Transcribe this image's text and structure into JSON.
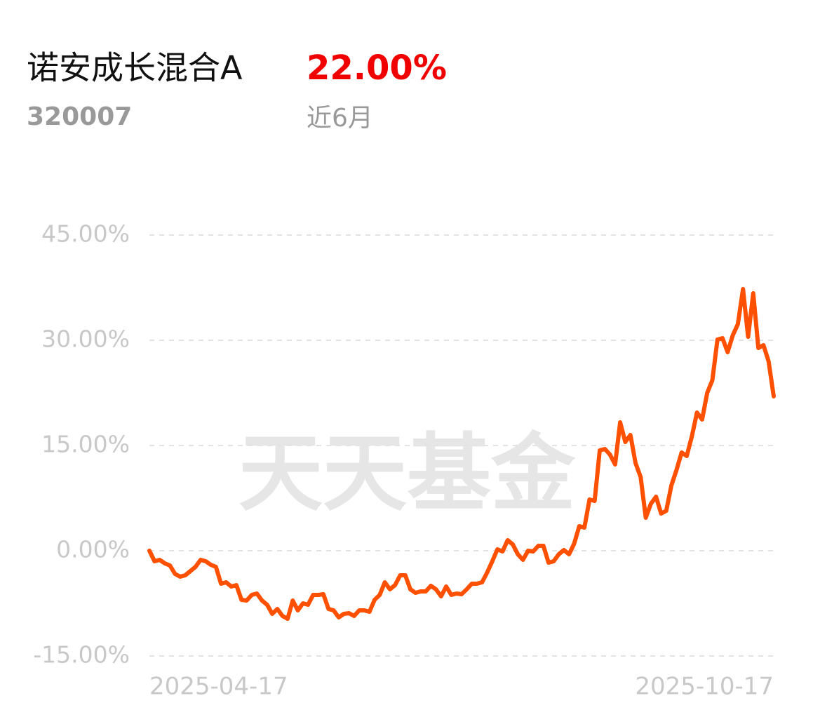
{
  "chart_data": {
    "type": "line",
    "title": "诺安成长混合A",
    "subtitle": "320007",
    "period_return": "22.00%",
    "period": "近6月",
    "watermark": "天天基金",
    "color": "#ff5000",
    "return_color": "#f00000",
    "grid": true,
    "ylim": [
      -15,
      45
    ],
    "yticks": [
      {
        "value": -15,
        "label": "-15.00%"
      },
      {
        "value": 0,
        "label": "0.00%"
      },
      {
        "value": 15,
        "label": "15.00%"
      },
      {
        "value": 30,
        "label": "30.00%"
      },
      {
        "value": 45,
        "label": "45.00%"
      }
    ],
    "categories": [
      "2025-04-17",
      null,
      null,
      null,
      null,
      null,
      null,
      null,
      null,
      null,
      null,
      null,
      null,
      null,
      null,
      null,
      null,
      null,
      null,
      null,
      null,
      null,
      null,
      null,
      null,
      null,
      null,
      null,
      null,
      null,
      null,
      null,
      null,
      null,
      null,
      null,
      null,
      null,
      null,
      null,
      null,
      null,
      null,
      null,
      null,
      null,
      null,
      null,
      null,
      null,
      null,
      null,
      null,
      null,
      null,
      null,
      null,
      null,
      null,
      null,
      null,
      null,
      null,
      null,
      null,
      null,
      null,
      null,
      null,
      null,
      null,
      null,
      null,
      null,
      null,
      null,
      null,
      null,
      null,
      null,
      null,
      null,
      null,
      null,
      null,
      null,
      null,
      null,
      null,
      null,
      null,
      null,
      null,
      null,
      null,
      null,
      null,
      null,
      null,
      null,
      null,
      null,
      null,
      null,
      null,
      null,
      null,
      null,
      null,
      null,
      null,
      null,
      null,
      null,
      null,
      null,
      null,
      null,
      null,
      null,
      null,
      null,
      "2025-10-17"
    ],
    "values": [
      0,
      -1.5,
      -1.3,
      -1.8,
      -2.1,
      -3.3,
      -3.7,
      -3.5,
      -2.9,
      -2.3,
      -1.3,
      -1.5,
      -2.0,
      -2.3,
      -4.7,
      -4.5,
      -5.1,
      -4.9,
      -7.0,
      -7.1,
      -6.3,
      -6.1,
      -7.1,
      -7.7,
      -9.0,
      -8.3,
      -9.3,
      -9.7,
      -7.1,
      -8.5,
      -7.5,
      -7.7,
      -6.3,
      -6.3,
      -6.2,
      -8.3,
      -8.5,
      -9.5,
      -9.0,
      -8.9,
      -9.3,
      -8.5,
      -8.5,
      -8.7,
      -7.0,
      -6.3,
      -4.5,
      -5.5,
      -4.9,
      -3.5,
      -3.5,
      -5.5,
      -6.0,
      -5.8,
      -5.8,
      -5.0,
      -5.5,
      -6.5,
      -5.1,
      -6.3,
      -6.1,
      -6.2,
      -5.5,
      -4.7,
      -4.7,
      -4.5,
      -3.1,
      -1.5,
      0.2,
      -0.1,
      1.5,
      0.9,
      -0.5,
      -1.3,
      0,
      -0.1,
      0.7,
      0.7,
      -1.7,
      -1.5,
      -0.5,
      0.1,
      -0.5,
      1.0,
      3.5,
      3.3,
      7.3,
      7.1,
      14.3,
      14.5,
      13.7,
      12.3,
      18.3,
      15.5,
      16.5,
      12.5,
      10.5,
      4.7,
      6.7,
      7.7,
      5.3,
      5.7,
      9.3,
      11.5,
      14.0,
      13.5,
      16.3,
      19.7,
      18.7,
      22.5,
      24.3,
      30.1,
      30.3,
      28.3,
      30.7,
      32.3,
      37.3,
      30.5,
      36.7,
      28.9,
      29.3,
      27.0,
      22.0
    ]
  }
}
